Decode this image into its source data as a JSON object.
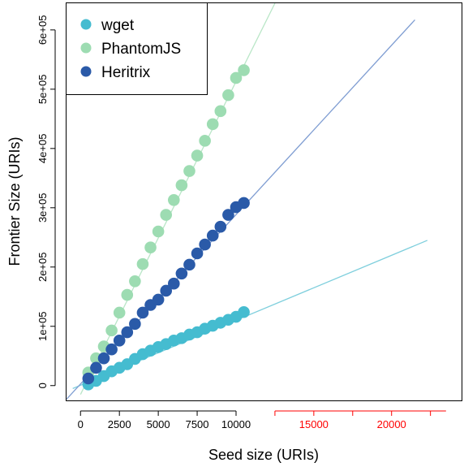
{
  "chart_data": {
    "type": "scatter",
    "title": "",
    "xlabel": "Seed size (URIs)",
    "ylabel": "Frontier Size (URIs)",
    "xlim": [
      -900,
      24500
    ],
    "ylim": [
      -25000,
      645000
    ],
    "x_ticks": [
      {
        "value": 0,
        "label": "0",
        "color": "#000000"
      },
      {
        "value": 2500,
        "label": "2500",
        "color": "#000000"
      },
      {
        "value": 5000,
        "label": "5000",
        "color": "#000000"
      },
      {
        "value": 7500,
        "label": "7500",
        "color": "#000000"
      },
      {
        "value": 10000,
        "label": "10000",
        "color": "#000000"
      },
      {
        "value": 15000,
        "label": "15000",
        "color": "#ff0000"
      },
      {
        "value": 20000,
        "label": "20000",
        "color": "#ff0000"
      }
    ],
    "x_axis_extension": {
      "from": 12500,
      "to": 23500,
      "minor_ticks": [
        12500,
        15000,
        17500,
        20000,
        22500
      ],
      "color": "#ff0000"
    },
    "y_ticks": [
      {
        "value": 0,
        "label": "0"
      },
      {
        "value": 100000,
        "label": "1e+05"
      },
      {
        "value": 200000,
        "label": "2e+05"
      },
      {
        "value": 300000,
        "label": "3e+05"
      },
      {
        "value": 400000,
        "label": "4e+05"
      },
      {
        "value": 500000,
        "label": "5e+05"
      },
      {
        "value": 600000,
        "label": "6e+05"
      }
    ],
    "legend": {
      "position": "top-left"
    },
    "grid": false,
    "series": [
      {
        "name": "wget",
        "color": "#45bcd0",
        "line_color": "#7fcfdd",
        "x": [
          500,
          1000,
          1500,
          2000,
          2500,
          3000,
          3500,
          4000,
          4500,
          5000,
          5500,
          6000,
          6500,
          7000,
          7500,
          8000,
          8500,
          9000,
          9500,
          10000,
          10500
        ],
        "y": [
          2000,
          8000,
          16000,
          24000,
          30000,
          36000,
          45000,
          53000,
          59000,
          65000,
          70000,
          76000,
          80000,
          86000,
          90000,
          96000,
          101000,
          106000,
          111000,
          116000,
          124000
        ],
        "fit": {
          "x0": -500,
          "y0": -5000,
          "x1": 22300,
          "y1": 245000
        }
      },
      {
        "name": "PhantomJS",
        "color": "#9ddcb2",
        "line_color": "#b9e6c7",
        "x": [
          500,
          1000,
          1500,
          2000,
          2500,
          3000,
          3500,
          4000,
          4500,
          5000,
          5500,
          6000,
          6500,
          7000,
          7500,
          8000,
          8500,
          9000,
          9500,
          10000,
          10500
        ],
        "y": [
          22000,
          46000,
          66000,
          93000,
          123000,
          153000,
          176000,
          205000,
          233000,
          260000,
          288000,
          313000,
          338000,
          362000,
          388000,
          413000,
          441000,
          463000,
          490000,
          519000,
          532000
        ],
        "fit": {
          "x0": 0,
          "y0": -15000,
          "x1": 12500,
          "y1": 645000
        }
      },
      {
        "name": "Heritrix",
        "color": "#2a5aa8",
        "line_color": "#7f9dd2",
        "x": [
          500,
          1000,
          1500,
          2000,
          2500,
          3000,
          3500,
          4000,
          4500,
          5000,
          5500,
          6000,
          6500,
          7000,
          7500,
          8000,
          8500,
          9000,
          9500,
          10000,
          10500
        ],
        "y": [
          12000,
          30000,
          46000,
          61000,
          76000,
          90000,
          104000,
          123000,
          136000,
          145000,
          160000,
          172000,
          189000,
          204000,
          223000,
          238000,
          253000,
          268000,
          288000,
          301000,
          308000
        ],
        "fit": {
          "x0": -900,
          "y0": -23000,
          "x1": 21500,
          "y1": 617000
        }
      }
    ]
  }
}
